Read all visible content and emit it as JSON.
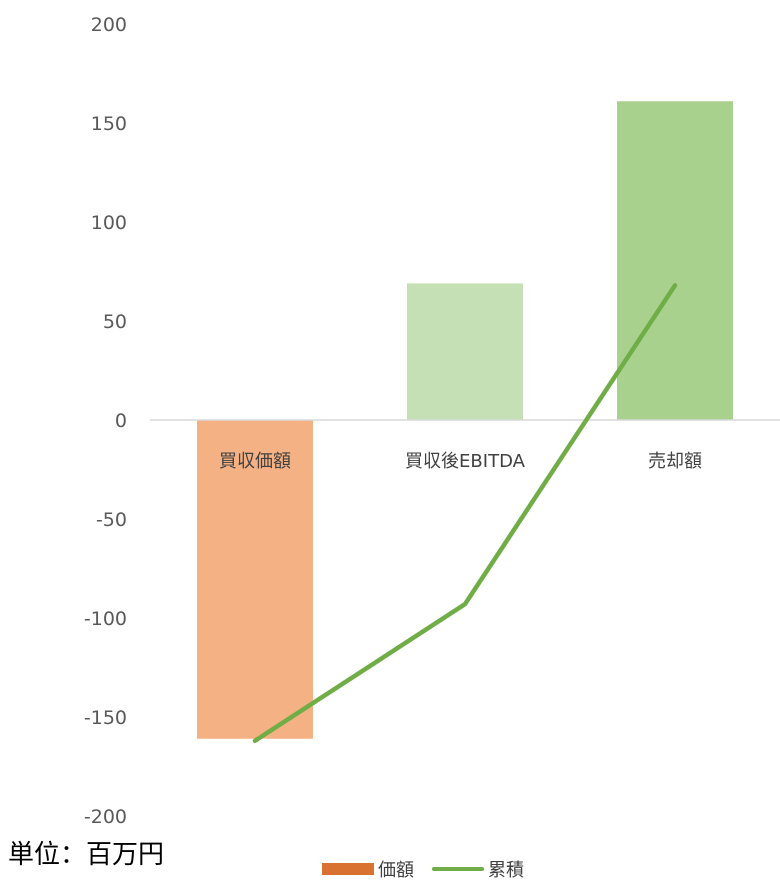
{
  "chart_data": {
    "type": "bar",
    "categories": [
      "買収価額",
      "買収後EBITDA",
      "売却額"
    ],
    "series": [
      {
        "name": "価額",
        "kind": "bar",
        "values": [
          -161,
          69,
          161
        ]
      },
      {
        "name": "累積",
        "kind": "line",
        "values": [
          -162,
          -93,
          68
        ]
      }
    ],
    "yticks": [
      200,
      150,
      100,
      50,
      0,
      -50,
      -100,
      -150,
      -200
    ],
    "ylim": [
      -200,
      200
    ],
    "grid": false,
    "legend_position": "bottom",
    "colors": {
      "bar_bars": [
        "#f4b183",
        "#c5e0b4",
        "#a9d18e"
      ],
      "bar_legend": "#d97131",
      "line": "#70ad47",
      "axis": "#d9d9d9"
    }
  },
  "unit_label": "単位：百万円"
}
